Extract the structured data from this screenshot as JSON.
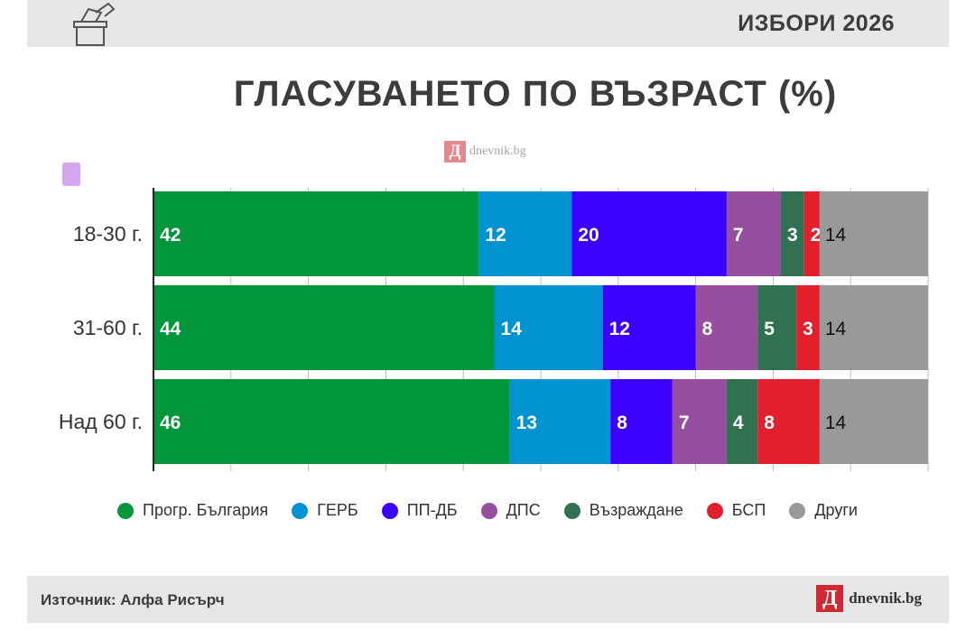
{
  "header": {
    "tag": "ИЗБОРИ 2026"
  },
  "title": "ГЛАСУВАНЕТО ПО ВЪЗРАСТ (%)",
  "watermark": {
    "mark": "Д",
    "text": "dnevnik.bg"
  },
  "colors": {
    "Прогр. България": "#009639",
    "ГЕРБ": "#0092d1",
    "ПП-ДБ": "#3c00ff",
    "ДПС": "#954f9e",
    "Възраждане": "#2f7150",
    "БСП": "#e31e2d",
    "Други": "#999999"
  },
  "chart_data": {
    "type": "bar",
    "orientation": "horizontal",
    "stacked": true,
    "title": "ГЛАСУВАНЕТО ПО ВЪЗРАСТ (%)",
    "categories": [
      "18-30 г.",
      "31-60 г.",
      "Над 60 г."
    ],
    "series": [
      {
        "name": "Прогр. България",
        "values": [
          42,
          44,
          46
        ]
      },
      {
        "name": "ГЕРБ",
        "values": [
          12,
          14,
          13
        ]
      },
      {
        "name": "ПП-ДБ",
        "values": [
          20,
          12,
          8
        ]
      },
      {
        "name": "ДПС",
        "values": [
          7,
          8,
          7
        ]
      },
      {
        "name": "Възраждане",
        "values": [
          3,
          5,
          4
        ]
      },
      {
        "name": "БСП",
        "values": [
          2,
          3,
          8
        ]
      },
      {
        "name": "Други",
        "values": [
          14,
          14,
          14
        ]
      }
    ],
    "xlim": [
      0,
      100
    ],
    "grid": true,
    "legend": "bottom"
  },
  "footer": {
    "source": "Източник: Алфа Рисърч",
    "logo_mark": "Д",
    "logo_text": "dnevnik.bg"
  }
}
